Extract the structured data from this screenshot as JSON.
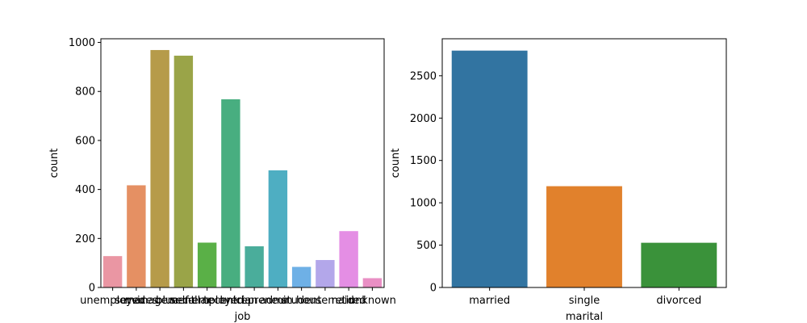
{
  "chart_data": [
    {
      "type": "bar",
      "xlabel": "job",
      "ylabel": "count",
      "categories": [
        "unemployed",
        "services",
        "management",
        "blue-collar",
        "self-employed",
        "technician",
        "entrepreneur",
        "admin.",
        "student",
        "housemaid",
        "retired",
        "unknown"
      ],
      "values": [
        128,
        417,
        969,
        946,
        183,
        768,
        168,
        478,
        84,
        112,
        230,
        38
      ],
      "colors": [
        "#ea96a3",
        "#e59063",
        "#b69b4a",
        "#9aa448",
        "#5ab047",
        "#48ae80",
        "#4aad9b",
        "#4eaec2",
        "#6eb0e6",
        "#b3a7ea",
        "#e48ee4",
        "#e98fc4"
      ],
      "ylim": [
        0,
        1015
      ],
      "yticks": [
        0,
        200,
        400,
        600,
        800,
        1000
      ]
    },
    {
      "type": "bar",
      "xlabel": "marital",
      "ylabel": "count",
      "categories": [
        "married",
        "single",
        "divorced"
      ],
      "values": [
        2797,
        1196,
        528
      ],
      "colors": [
        "#3274a1",
        "#e1812c",
        "#3a923a"
      ],
      "ylim": [
        0,
        2937
      ],
      "yticks": [
        0,
        500,
        1000,
        1500,
        2000,
        2500
      ]
    }
  ]
}
